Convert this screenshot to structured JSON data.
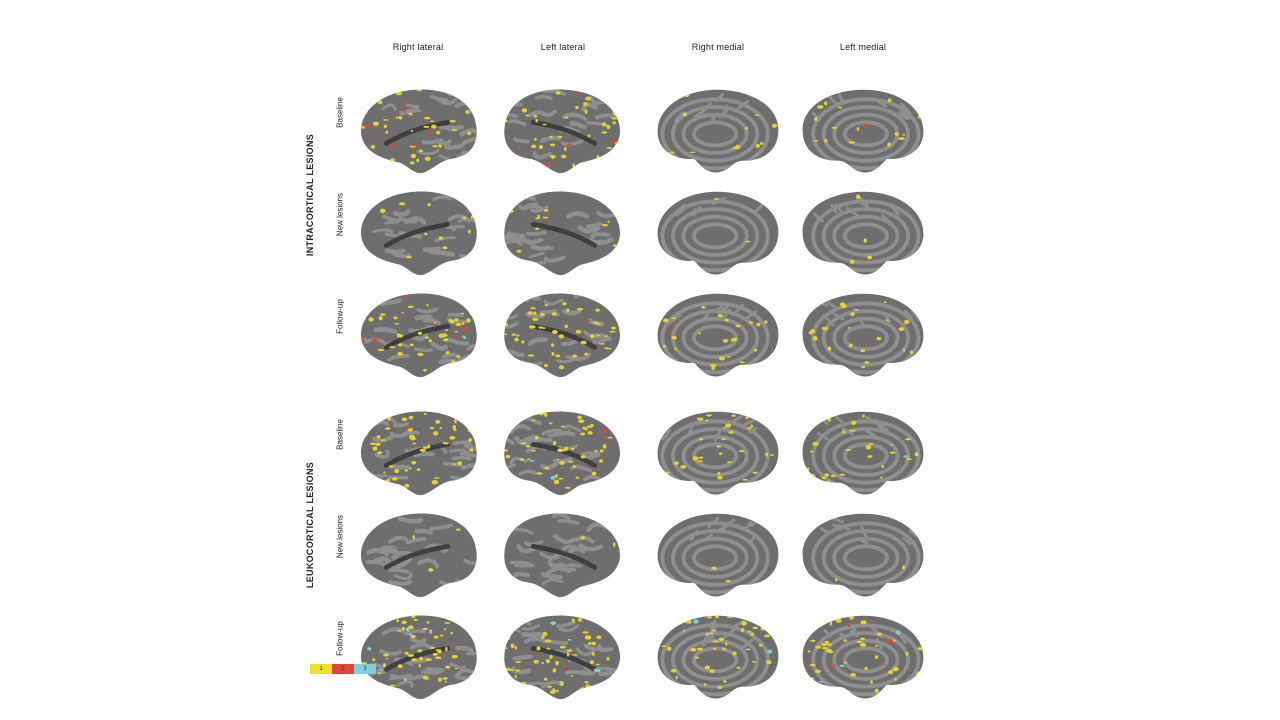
{
  "columns": [
    "Right lateral",
    "Left lateral",
    "Right medial",
    "Left medial"
  ],
  "groups": [
    {
      "label": "INTRACORTICAL LESIONS",
      "rows": [
        {
          "label": "Baseline",
          "lateral_density": 0.55,
          "lateral_red": 0.1,
          "medial_density": 0.18,
          "medial_red": 0.04,
          "cyan": 0.0
        },
        {
          "label": "New lesions",
          "lateral_density": 0.12,
          "lateral_red": 0.0,
          "medial_density": 0.06,
          "medial_red": 0.0,
          "cyan": 0.0
        },
        {
          "label": "Follow-up",
          "lateral_density": 0.6,
          "lateral_red": 0.1,
          "medial_density": 0.3,
          "medial_red": 0.05,
          "cyan": 0.02
        }
      ]
    },
    {
      "label": "LEUKOCORTICAL LESIONS",
      "rows": [
        {
          "label": "Baseline",
          "lateral_density": 0.65,
          "lateral_red": 0.02,
          "medial_density": 0.4,
          "medial_red": 0.0,
          "cyan": 0.03
        },
        {
          "label": "New lesions",
          "lateral_density": 0.03,
          "lateral_red": 0.0,
          "medial_density": 0.02,
          "medial_red": 0.0,
          "cyan": 0.0
        },
        {
          "label": "Follow-up",
          "lateral_density": 0.7,
          "lateral_red": 0.02,
          "medial_density": 0.55,
          "medial_red": 0.02,
          "cyan": 0.08
        }
      ]
    }
  ],
  "legend": [
    {
      "label": "1",
      "color": "#f2e12a"
    },
    {
      "label": "2",
      "color": "#e0463a"
    },
    {
      "label": "3",
      "color": "#7fd0dc"
    }
  ],
  "colors": {
    "gyri": "#6e6e6e",
    "sulci": "#8f8f8f",
    "yellow": "#e8d22a",
    "red": "#d9473a",
    "cyan": "#7fd0dc"
  }
}
